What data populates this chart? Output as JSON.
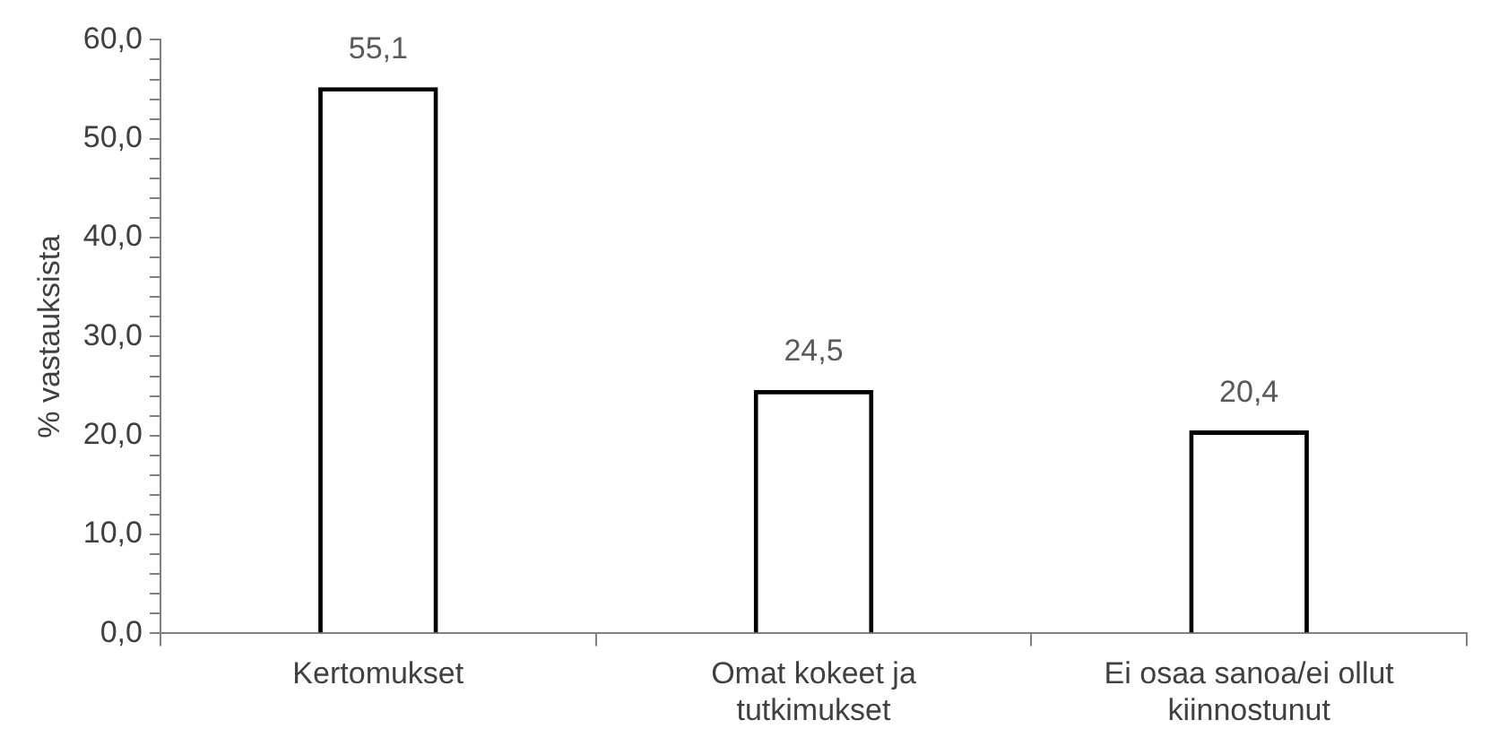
{
  "chart_data": {
    "type": "bar",
    "ylabel": "% vastauksista",
    "categories": [
      "Kertomukset",
      "Omat kokeet ja tutkimukset",
      "Ei osaa sanoa/ei ollut kiinnostunut"
    ],
    "values": [
      55.1,
      24.5,
      20.4
    ],
    "color": "#000000",
    "value_labels": [
      "55,1",
      "24,5",
      "20,4"
    ],
    "ylim": [
      0,
      60
    ],
    "yticks": [
      {
        "value": 0,
        "label": "0,0"
      },
      {
        "value": 2,
        "label": null
      },
      {
        "value": 4,
        "label": null
      },
      {
        "value": 6,
        "label": null
      },
      {
        "value": 8,
        "label": null
      },
      {
        "value": 10,
        "label": "10,0"
      },
      {
        "value": 12,
        "label": null
      },
      {
        "value": 14,
        "label": null
      },
      {
        "value": 16,
        "label": null
      },
      {
        "value": 18,
        "label": null
      },
      {
        "value": 20,
        "label": "20,0"
      },
      {
        "value": 22,
        "label": null
      },
      {
        "value": 24,
        "label": null
      },
      {
        "value": 26,
        "label": null
      },
      {
        "value": 28,
        "label": null
      },
      {
        "value": 30,
        "label": "30,0"
      },
      {
        "value": 32,
        "label": null
      },
      {
        "value": 34,
        "label": null
      },
      {
        "value": 36,
        "label": null
      },
      {
        "value": 38,
        "label": null
      },
      {
        "value": 40,
        "label": "40,0"
      },
      {
        "value": 42,
        "label": null
      },
      {
        "value": 44,
        "label": null
      },
      {
        "value": 46,
        "label": null
      },
      {
        "value": 48,
        "label": null
      },
      {
        "value": 50,
        "label": "50,0"
      },
      {
        "value": 52,
        "label": null
      },
      {
        "value": 54,
        "label": null
      },
      {
        "value": 56,
        "label": null
      },
      {
        "value": 58,
        "label": null
      },
      {
        "value": 60,
        "label": "60,0"
      }
    ],
    "grid": false,
    "legend": false
  }
}
